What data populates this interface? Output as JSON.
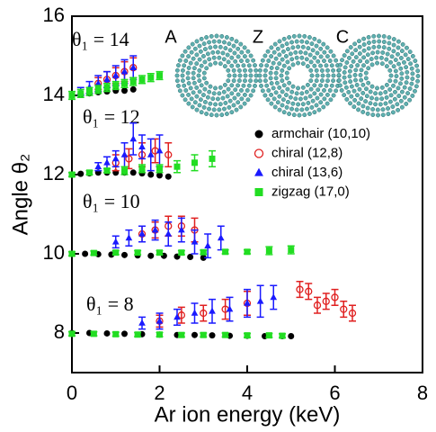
{
  "chart_data": {
    "type": "scatter",
    "xlabel": "Ar ion energy (keV)",
    "ylabel": "Angle θ₂",
    "xlim": [
      0,
      8
    ],
    "ylim": [
      7,
      16
    ],
    "xticks": [
      0,
      2,
      4,
      6,
      8
    ],
    "yticks": [
      8,
      10,
      12,
      14,
      16
    ],
    "legend_position": "center-right",
    "annotations": [
      "θ₁ = 14",
      "θ₁ = 12",
      "θ₁ = 10",
      "θ₁ = 8"
    ],
    "inset_labels": [
      "A",
      "Z",
      "C"
    ],
    "series": [
      {
        "name": "armchair (10,10)",
        "color": "#000000",
        "marker": "circle",
        "x": [
          0,
          0.2,
          0.4,
          0.6,
          0.8,
          1.0,
          1.2,
          1.4,
          0,
          0.2,
          0.4,
          0.6,
          0.8,
          1.0,
          1.2,
          1.4,
          1.6,
          1.8,
          2.0,
          2.2,
          0,
          0.3,
          0.6,
          0.9,
          1.2,
          1.5,
          1.8,
          2.1,
          2.4,
          2.7,
          3.0,
          0,
          0.4,
          0.8,
          1.2,
          1.6,
          2.0,
          2.4,
          2.8,
          3.2,
          3.6,
          4.0,
          4.4,
          4.8,
          5.0
        ],
        "values": [
          14.0,
          14.02,
          14.05,
          14.08,
          14.1,
          14.12,
          14.12,
          14.15,
          12.0,
          12.02,
          12.03,
          12.05,
          12.05,
          12.05,
          12.05,
          12.05,
          12.03,
          12.0,
          11.98,
          11.95,
          10.0,
          10.0,
          9.99,
          9.98,
          9.97,
          9.96,
          9.95,
          9.95,
          9.93,
          9.92,
          9.9,
          8.0,
          8.0,
          7.99,
          7.98,
          7.97,
          7.96,
          7.95,
          7.95,
          7.94,
          7.93,
          7.93,
          7.92,
          7.92,
          7.92
        ]
      },
      {
        "name": "chiral (12,8)",
        "color": "#e02020",
        "marker": "open-circle",
        "x": [
          0.6,
          0.8,
          1.0,
          1.2,
          1.4,
          1.0,
          1.3,
          1.6,
          1.9,
          2.2,
          1.6,
          1.9,
          2.2,
          2.5,
          2.8,
          2.0,
          2.5,
          3.0,
          3.5,
          4.0,
          5.2,
          5.4,
          5.6,
          5.8,
          6.0,
          6.2,
          6.4
        ],
        "values": [
          14.3,
          14.4,
          14.5,
          14.6,
          14.7,
          12.3,
          12.4,
          12.5,
          12.6,
          12.5,
          10.5,
          10.6,
          10.7,
          10.7,
          10.6,
          8.3,
          8.45,
          8.5,
          8.6,
          8.75,
          9.1,
          9.05,
          8.7,
          8.8,
          8.9,
          8.6,
          8.5
        ],
        "errors": [
          0.15,
          0.2,
          0.2,
          0.25,
          0.25,
          0.2,
          0.25,
          0.3,
          0.3,
          0.3,
          0.2,
          0.2,
          0.25,
          0.25,
          0.3,
          0.15,
          0.2,
          0.2,
          0.25,
          0.3,
          0.2,
          0.2,
          0.2,
          0.2,
          0.2,
          0.2,
          0.2
        ]
      },
      {
        "name": "chiral (13,6)",
        "color": "#1a1aff",
        "marker": "triangle",
        "x": [
          0.2,
          0.4,
          0.6,
          0.8,
          1.0,
          1.2,
          1.4,
          0.6,
          0.8,
          1.0,
          1.2,
          1.4,
          1.6,
          1.8,
          2.0,
          1.0,
          1.3,
          1.6,
          1.9,
          2.2,
          2.5,
          2.8,
          3.1,
          3.4,
          1.6,
          2.0,
          2.4,
          2.8,
          3.2,
          3.6,
          4.0,
          4.3,
          4.6
        ],
        "values": [
          14.1,
          14.2,
          14.3,
          14.4,
          14.5,
          14.6,
          14.7,
          12.2,
          12.3,
          12.4,
          12.5,
          12.9,
          12.7,
          12.5,
          12.6,
          10.3,
          10.4,
          10.5,
          10.6,
          10.5,
          10.6,
          10.3,
          10.2,
          10.4,
          8.25,
          8.3,
          8.4,
          8.5,
          8.55,
          8.6,
          8.75,
          8.8,
          8.9
        ],
        "errors": [
          0.1,
          0.15,
          0.2,
          0.2,
          0.25,
          0.3,
          0.3,
          0.1,
          0.15,
          0.2,
          0.3,
          0.4,
          0.3,
          0.4,
          0.4,
          0.15,
          0.2,
          0.2,
          0.25,
          0.3,
          0.3,
          0.3,
          0.3,
          0.3,
          0.15,
          0.2,
          0.2,
          0.25,
          0.3,
          0.3,
          0.35,
          0.4,
          0.3
        ]
      },
      {
        "name": "zigzag (17,0)",
        "color": "#22dd22",
        "marker": "square",
        "x": [
          0,
          0.2,
          0.4,
          0.6,
          0.8,
          1.0,
          1.2,
          1.4,
          1.6,
          1.8,
          2.0,
          0,
          0.4,
          0.8,
          1.2,
          1.6,
          2.0,
          2.4,
          2.8,
          3.2,
          0,
          0.5,
          1.0,
          1.5,
          2.0,
          2.5,
          3.0,
          3.5,
          4.0,
          4.5,
          5.0,
          0,
          0.5,
          1.0,
          1.5,
          2.0,
          2.5,
          3.0,
          3.5,
          4.0,
          4.5,
          4.8
        ],
        "values": [
          14.0,
          14.05,
          14.1,
          14.15,
          14.2,
          14.25,
          14.3,
          14.35,
          14.4,
          14.45,
          14.5,
          12.0,
          12.05,
          12.1,
          12.1,
          12.15,
          12.15,
          12.2,
          12.3,
          12.4,
          10.0,
          10.02,
          10.03,
          10.03,
          10.03,
          10.03,
          10.04,
          10.05,
          10.05,
          10.08,
          10.1,
          7.98,
          7.98,
          7.97,
          7.96,
          7.96,
          7.95,
          7.95,
          7.95,
          7.94,
          7.94,
          7.93
        ],
        "errors": [
          0.1,
          0.1,
          0.1,
          0.1,
          0.1,
          0.1,
          0.1,
          0.1,
          0.1,
          0.1,
          0.1,
          0.05,
          0.05,
          0.05,
          0.1,
          0.1,
          0.1,
          0.15,
          0.2,
          0.2,
          0.05,
          0.05,
          0.05,
          0.05,
          0.05,
          0.05,
          0.05,
          0.05,
          0.05,
          0.1,
          0.1,
          0.05,
          0.05,
          0.05,
          0.05,
          0.05,
          0.05,
          0.05,
          0.05,
          0.05,
          0.05,
          0.05
        ]
      }
    ]
  }
}
